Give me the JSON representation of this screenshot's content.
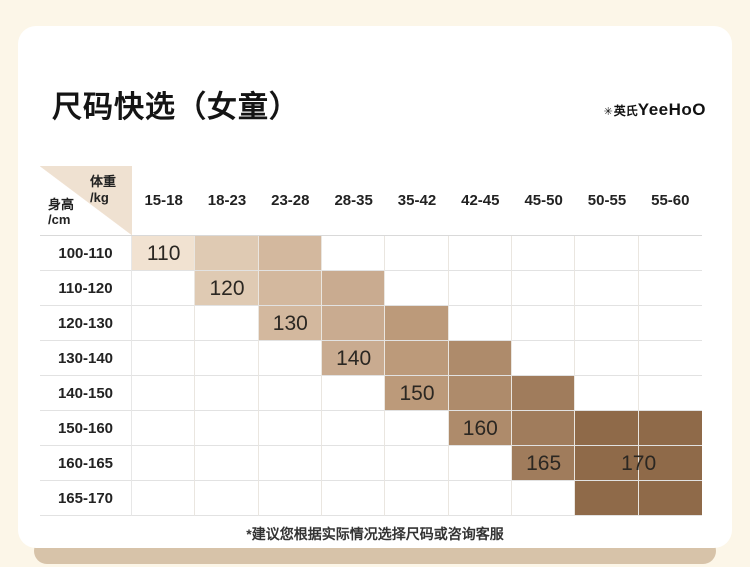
{
  "page": {
    "title": "尺码快选（女童）",
    "brand": {
      "mark": "✳",
      "cn": "英氏",
      "en": "YeeHoO"
    },
    "footnote": "*建议您根据实际情况选择尺码或咨询客服"
  },
  "size_table": {
    "corner": {
      "weight_label": "体重",
      "weight_unit": "/kg",
      "height_label": "身高",
      "height_unit": "/cm"
    },
    "weight_columns": [
      "15-18",
      "18-23",
      "23-28",
      "28-35",
      "35-42",
      "42-45",
      "45-50",
      "50-55",
      "55-60"
    ],
    "height_rows": [
      "100-110",
      "110-120",
      "120-130",
      "130-140",
      "140-150",
      "150-160",
      "160-165",
      "165-170"
    ],
    "blocks": [
      {
        "label": "110",
        "col": 1,
        "col_span": 1,
        "row": 1,
        "row_span": 1,
        "label_col": 1,
        "label_col_span": 1,
        "label_row": 1,
        "color": "#F1E2D1"
      },
      {
        "label": "120",
        "col": 2,
        "col_span": 1,
        "row": 1,
        "row_span": 2,
        "label_col": 2,
        "label_col_span": 1,
        "label_row": 2,
        "color": "#DFCAB3"
      },
      {
        "label": "130",
        "col": 3,
        "col_span": 1,
        "row": 1,
        "row_span": 3,
        "label_col": 3,
        "label_col_span": 1,
        "label_row": 3,
        "color": "#D3B89E"
      },
      {
        "label": "140",
        "col": 4,
        "col_span": 1,
        "row": 2,
        "row_span": 3,
        "label_col": 4,
        "label_col_span": 1,
        "label_row": 4,
        "color": "#C9AB90"
      },
      {
        "label": "150",
        "col": 5,
        "col_span": 1,
        "row": 3,
        "row_span": 3,
        "label_col": 5,
        "label_col_span": 1,
        "label_row": 5,
        "color": "#BC9A7A"
      },
      {
        "label": "160",
        "col": 6,
        "col_span": 1,
        "row": 4,
        "row_span": 3,
        "label_col": 6,
        "label_col_span": 1,
        "label_row": 6,
        "color": "#AE8B6B"
      },
      {
        "label": "165",
        "col": 7,
        "col_span": 1,
        "row": 5,
        "row_span": 3,
        "label_col": 7,
        "label_col_span": 1,
        "label_row": 7,
        "color": "#A07C5C"
      },
      {
        "label": "170",
        "col": 8,
        "col_span": 2,
        "row": 6,
        "row_span": 3,
        "label_col": 8,
        "label_col_span": 2,
        "label_row": 7,
        "color": "#8F6A49"
      }
    ]
  },
  "colors": {
    "page_background": "#FCF6E8",
    "card_background": "#FFFFFF",
    "accent_bar": "#D7C3A9",
    "corner_triangle": "#EFE1D1",
    "grid_line": "#E2E2E2"
  },
  "chart_data": {
    "type": "heatmap",
    "title": "尺码快选（女童）",
    "xlabel": "体重/kg",
    "ylabel": "身高/cm",
    "x_categories": [
      "15-18",
      "18-23",
      "23-28",
      "28-35",
      "35-42",
      "42-45",
      "45-50",
      "50-55",
      "55-60"
    ],
    "y_categories": [
      "100-110",
      "110-120",
      "120-130",
      "130-140",
      "140-150",
      "150-160",
      "160-165",
      "165-170"
    ],
    "legend_position": "none",
    "grid": true,
    "cells": [
      {
        "size": "110",
        "weight_kg": [
          "15-18"
        ],
        "height_cm": [
          "100-110"
        ]
      },
      {
        "size": "120",
        "weight_kg": [
          "18-23"
        ],
        "height_cm": [
          "100-110",
          "110-120"
        ]
      },
      {
        "size": "130",
        "weight_kg": [
          "23-28"
        ],
        "height_cm": [
          "100-110",
          "110-120",
          "120-130"
        ]
      },
      {
        "size": "140",
        "weight_kg": [
          "28-35"
        ],
        "height_cm": [
          "110-120",
          "120-130",
          "130-140"
        ]
      },
      {
        "size": "150",
        "weight_kg": [
          "35-42"
        ],
        "height_cm": [
          "120-130",
          "130-140",
          "140-150"
        ]
      },
      {
        "size": "160",
        "weight_kg": [
          "42-45"
        ],
        "height_cm": [
          "130-140",
          "140-150",
          "150-160"
        ]
      },
      {
        "size": "165",
        "weight_kg": [
          "45-50"
        ],
        "height_cm": [
          "140-150",
          "150-160",
          "160-165"
        ]
      },
      {
        "size": "170",
        "weight_kg": [
          "50-55",
          "55-60"
        ],
        "height_cm": [
          "150-160",
          "160-165",
          "165-170"
        ]
      }
    ],
    "annotations": [
      "*建议您根据实际情况选择尺码或咨询客服"
    ]
  }
}
